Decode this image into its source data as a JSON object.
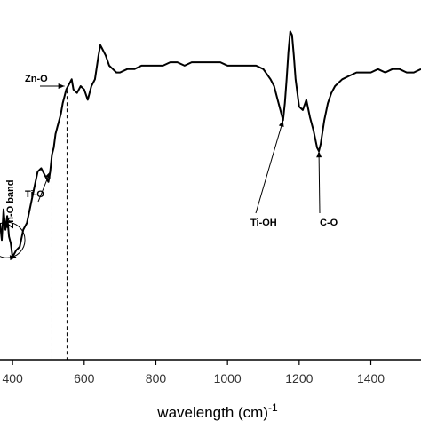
{
  "chart_data": {
    "type": "line",
    "title": "",
    "xlabel": "wavelength (cm)",
    "xlabel_superscript": "-1",
    "ylabel": "",
    "xlim": [
      365,
      1540
    ],
    "ylim": [
      0,
      100
    ],
    "xticks": [
      400,
      600,
      800,
      1000,
      1200,
      1400
    ],
    "xtick_labels": [
      "400",
      "600",
      "800",
      "1000",
      "1200",
      "1400"
    ],
    "grid": false,
    "line_color": "#000000",
    "series": [
      {
        "x": [
          365,
          370,
          375,
          380,
          385,
          390,
          395,
          400,
          410,
          420,
          430,
          440,
          450,
          460,
          470,
          480,
          490,
          500,
          505,
          510,
          515,
          520,
          525,
          530,
          535,
          540,
          545,
          550,
          555,
          560,
          565,
          570,
          580,
          590,
          600,
          610,
          620,
          630,
          640,
          645,
          650,
          660,
          670,
          680,
          690,
          700,
          720,
          740,
          760,
          780,
          800,
          820,
          840,
          860,
          880,
          900,
          920,
          940,
          960,
          980,
          1000,
          1020,
          1040,
          1060,
          1080,
          1100,
          1120,
          1130,
          1140,
          1150,
          1155,
          1160,
          1165,
          1170,
          1175,
          1180,
          1185,
          1190,
          1200,
          1210,
          1220,
          1230,
          1240,
          1250,
          1255,
          1260,
          1270,
          1280,
          1290,
          1300,
          1320,
          1340,
          1360,
          1380,
          1400,
          1420,
          1440,
          1460,
          1480,
          1500,
          1520,
          1540
        ],
        "y": [
          40,
          35,
          44,
          38,
          42,
          36,
          34,
          30,
          32,
          33,
          38,
          40,
          45,
          50,
          55,
          56,
          54,
          52,
          55,
          60,
          62,
          66,
          68,
          70,
          72,
          75,
          77,
          79,
          80,
          81,
          82,
          79,
          78,
          80,
          79,
          76,
          80,
          82,
          89,
          92,
          91,
          89,
          86,
          85,
          84,
          84,
          85,
          85,
          86,
          86,
          86,
          86,
          87,
          87,
          86,
          87,
          87,
          87,
          87,
          87,
          86,
          86,
          86,
          86,
          86,
          85,
          82,
          80,
          76,
          72,
          70,
          75,
          82,
          90,
          96,
          95,
          89,
          82,
          74,
          73,
          76,
          71,
          67,
          62,
          61,
          63,
          70,
          75,
          78,
          80,
          82,
          83,
          84,
          84,
          84,
          85,
          84,
          85,
          85,
          84,
          84,
          85
        ]
      }
    ],
    "annotations": [
      {
        "text": "Zn-O",
        "x": 545,
        "y": 80
      },
      {
        "text": "Ti-O",
        "x": 505,
        "y": 55
      },
      {
        "text": "Zn-O band",
        "x": 410,
        "y": 30
      },
      {
        "text": "Ti-OH",
        "x": 1155,
        "y": 70
      },
      {
        "text": "C-O",
        "x": 1255,
        "y": 61
      }
    ],
    "reference_lines": [
      {
        "x": 510,
        "style": "dashed"
      },
      {
        "x": 552,
        "style": "dashed"
      }
    ]
  }
}
